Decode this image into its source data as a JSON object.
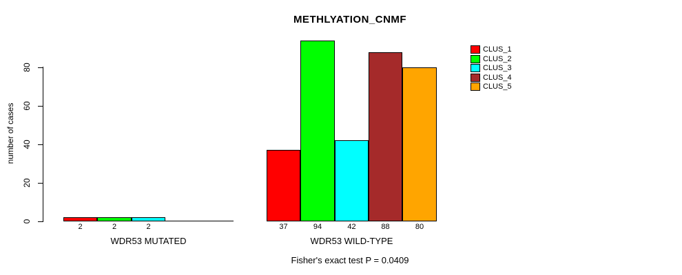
{
  "chart_data": {
    "type": "bar",
    "title": "METHLYATION_CNMF",
    "ylabel": "number of cases",
    "xlabel": "",
    "categories": [
      "WDR53 MUTATED",
      "WDR53 WILD-TYPE"
    ],
    "series": [
      {
        "name": "CLUS_1",
        "color": "#ff0000",
        "values": [
          2,
          37
        ]
      },
      {
        "name": "CLUS_2",
        "color": "#00ff00",
        "values": [
          2,
          94
        ]
      },
      {
        "name": "CLUS_3",
        "color": "#00ffff",
        "values": [
          2,
          42
        ]
      },
      {
        "name": "CLUS_4",
        "color": "#a52a2a",
        "values": [
          0,
          88
        ]
      },
      {
        "name": "CLUS_5",
        "color": "#ffa500",
        "values": [
          0,
          80
        ]
      }
    ],
    "bar_value_labels": [
      [
        "2",
        "2",
        "2",
        "",
        ""
      ],
      [
        "37",
        "94",
        "42",
        "88",
        "80"
      ]
    ],
    "yticks": [
      0,
      20,
      40,
      60,
      80
    ],
    "ylim": [
      0,
      94
    ],
    "grid": false,
    "legend": {
      "position": "top-right",
      "entries": [
        "CLUS_1",
        "CLUS_2",
        "CLUS_3",
        "CLUS_4",
        "CLUS_5"
      ],
      "colors": [
        "#ff0000",
        "#00ff00",
        "#00ffff",
        "#a52a2a",
        "#ffa500"
      ]
    },
    "annotation": "Fisher's exact test P = 0.0409"
  }
}
